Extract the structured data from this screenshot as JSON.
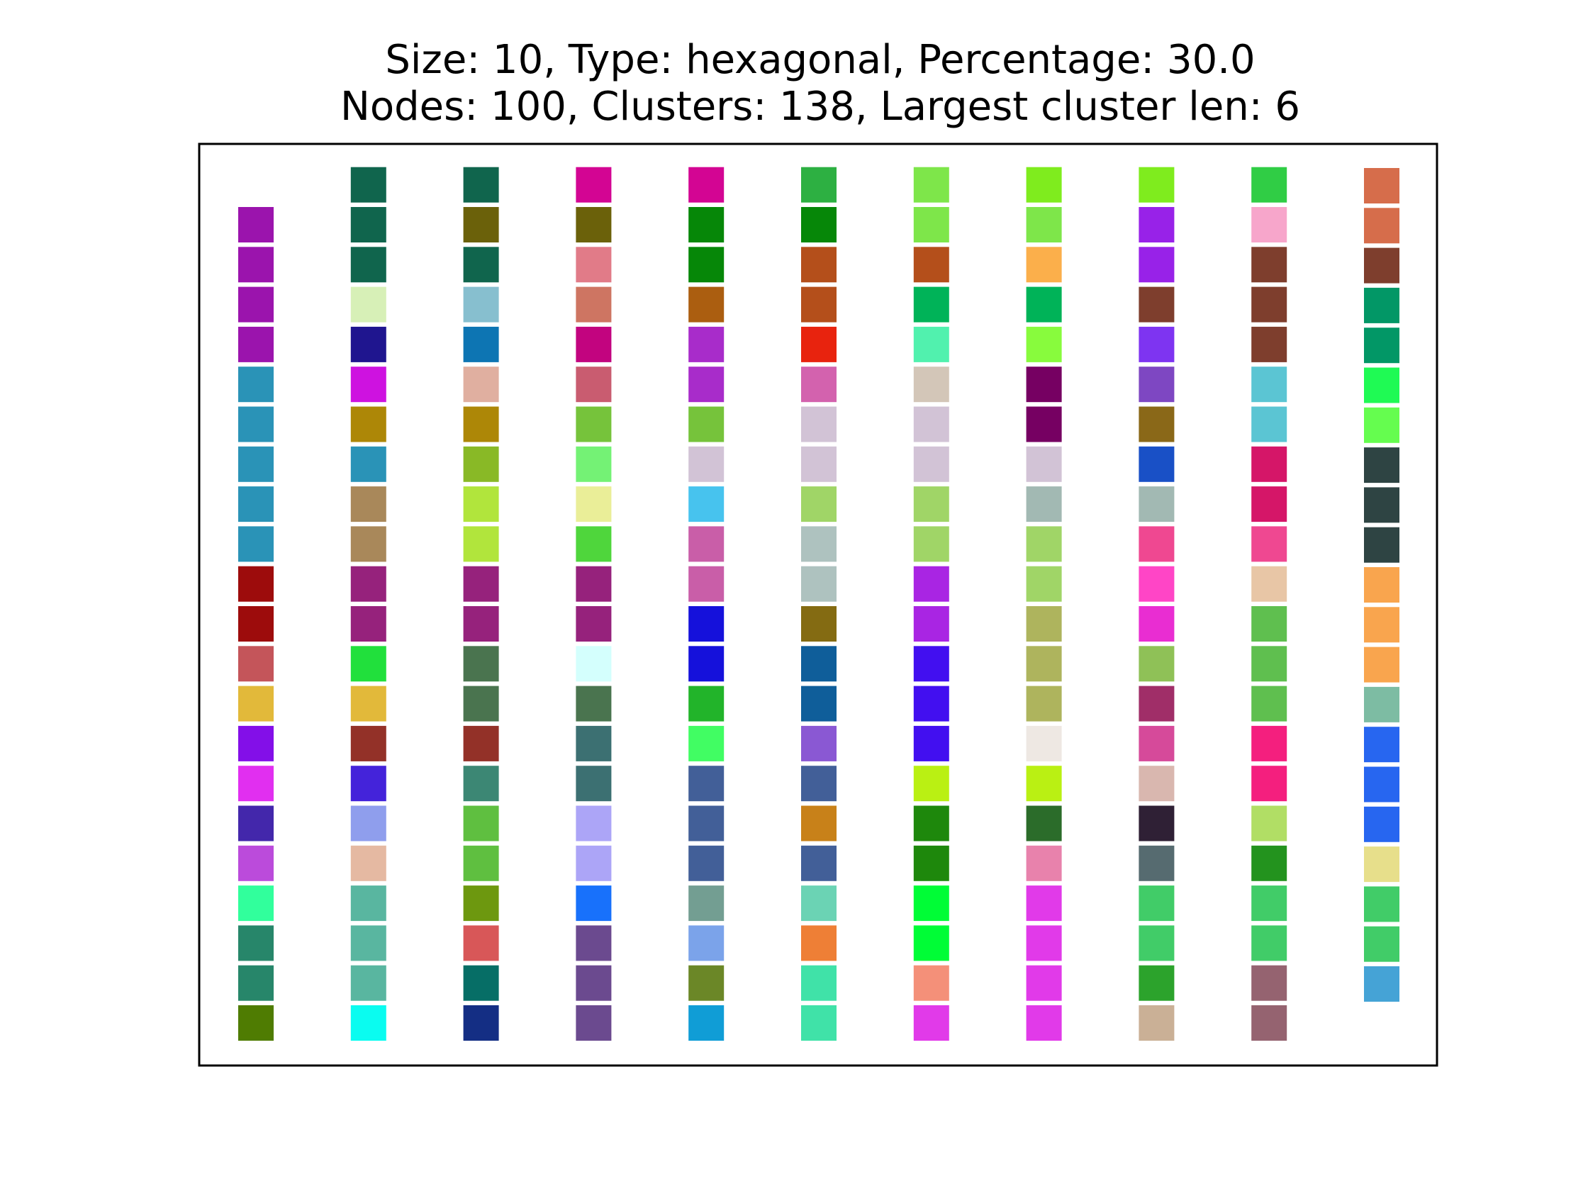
{
  "title": {
    "line1": "Size: 10, Type: hexagonal, Percentage: 30.0",
    "line2": "Nodes: 100, Clusters: 138, Largest cluster len: 6"
  },
  "chart_data": {
    "type": "heatmap",
    "grid": false,
    "axes_ticks": false,
    "description_of_values": "Each column lists the visible square colours from top to bottom",
    "columns": [
      [
        "#9b14ad",
        "#9b14ad",
        "#9b14ad",
        "#9b14ad",
        "#2a93b7",
        "#2a93b7",
        "#2a93b7",
        "#2a93b7",
        "#2a93b7",
        "#9d0c0c",
        "#9d0c0c",
        "#c4555a",
        "#e2b93a",
        "#830fe8",
        "#e12ff0",
        "#4327ab",
        "#bb4bdb",
        "#31ff9c",
        "#27866a",
        "#27866a",
        "#4f7c02"
      ],
      [
        "#10654d",
        "#10654d",
        "#10654d",
        "#d7f0b7",
        "#1f158f",
        "#ce12e0",
        "#ad8707",
        "#2a93b7",
        "#a9885a",
        "#a9885a",
        "#96227c",
        "#96227c",
        "#21e03c",
        "#e2b93a",
        "#933128",
        "#4423da",
        "#8f9eed",
        "#e5b9a2",
        "#59b6a0",
        "#59b6a0",
        "#59b6a0",
        "#0afcf0"
      ],
      [
        "#10654d",
        "#6b610a",
        "#10654d",
        "#87bfcf",
        "#0d75b3",
        "#e0afa0",
        "#ad8707",
        "#89b926",
        "#b1e53c",
        "#b1e53c",
        "#96227c",
        "#96227c",
        "#4a744f",
        "#4a744f",
        "#933128",
        "#3c8774",
        "#5fbf40",
        "#5fbf40",
        "#6d980f",
        "#d85758",
        "#066e66",
        "#142e84"
      ],
      [
        "#d30593",
        "#6b610a",
        "#e17b88",
        "#ce7562",
        "#c2047f",
        "#c95c70",
        "#76c33b",
        "#74f275",
        "#eaee98",
        "#4fd63c",
        "#96227c",
        "#96227c",
        "#d4fffd",
        "#4a744f",
        "#3c7072",
        "#3c7072",
        "#aca5f7",
        "#aca5f7",
        "#1871fb",
        "#6b4a8f",
        "#6b4a8f",
        "#6b4a8f"
      ],
      [
        "#d30593",
        "#068708",
        "#068708",
        "#ab5e10",
        "#a82cca",
        "#a82cca",
        "#76c33b",
        "#d2c3d6",
        "#47c3ee",
        "#c95ea8",
        "#c95ea8",
        "#1511db",
        "#1511db",
        "#22b42a",
        "#41fd63",
        "#425f98",
        "#425f98",
        "#425f98",
        "#739e92",
        "#7ba3ea",
        "#6b8727",
        "#109dd6"
      ],
      [
        "#2db042",
        "#068708",
        "#b44f1b",
        "#b44f1b",
        "#e8230e",
        "#d362ae",
        "#d2c3d6",
        "#d2c3d6",
        "#a0d567",
        "#aec2bf",
        "#aec2bf",
        "#846b12",
        "#0f5e9a",
        "#0f5e9a",
        "#8a58d3",
        "#425f98",
        "#c88119",
        "#425f98",
        "#6bd3b4",
        "#ee7f36",
        "#40e2a8",
        "#40e2a8"
      ],
      [
        "#7ee64a",
        "#7ee64a",
        "#b44f1b",
        "#00b358",
        "#51f1ae",
        "#d3c6b8",
        "#d2c3d6",
        "#d2c3d6",
        "#a0d567",
        "#a0d567",
        "#a925e3",
        "#a925e3",
        "#420ff0",
        "#420ff0",
        "#420ff0",
        "#baf013",
        "#1e880c",
        "#1e880c",
        "#00fd36",
        "#00fd36",
        "#f49079",
        "#e13ae9"
      ],
      [
        "#7fec1e",
        "#7ee64a",
        "#fbaf4b",
        "#00b358",
        "#88fb3d",
        "#760062",
        "#760062",
        "#d2c3d6",
        "#a2b9b3",
        "#a0d567",
        "#a0d567",
        "#aeb45d",
        "#aeb45d",
        "#aeb45d",
        "#eee8e3",
        "#baf013",
        "#2b6c2a",
        "#e882ac",
        "#e13ae9",
        "#e13ae9",
        "#e13ae9",
        "#e13ae9"
      ],
      [
        "#7fec1e",
        "#9822e8",
        "#9822e8",
        "#7e3e2d",
        "#7e34f1",
        "#7e47c2",
        "#8a6818",
        "#1950c6",
        "#a2b9b3",
        "#ef4891",
        "#ff45c6",
        "#e92dd2",
        "#8fc157",
        "#a02e68",
        "#d64a9a",
        "#d9b7af",
        "#2f2035",
        "#566b70",
        "#41cc68",
        "#41cc68",
        "#2ca32c",
        "#cab096"
      ],
      [
        "#30cd45",
        "#f7a6cb",
        "#7e3e2d",
        "#7e3e2d",
        "#7e3e2d",
        "#5bc5d3",
        "#5bc5d3",
        "#d51668",
        "#d51668",
        "#ef4891",
        "#e8c6a6",
        "#5fbf4f",
        "#5fbf4f",
        "#5fbf4f",
        "#f41f7e",
        "#f41f7e",
        "#b1de65",
        "#23931e",
        "#41cc68",
        "#41cc68",
        "#956370",
        "#956370"
      ],
      [
        "#d66d4b",
        "#d66d4b",
        "#7e3e2d",
        "#029766",
        "#029766",
        "#1ffa54",
        "#65fd4f",
        "#2e4443",
        "#2e4443",
        "#2e4443",
        "#f9a54e",
        "#f9a54e",
        "#f9a54e",
        "#7dbca3",
        "#2766f0",
        "#2766f0",
        "#2766f0",
        "#e7df8b",
        "#41cc68",
        "#41cc68",
        "#45a3d6"
      ]
    ]
  }
}
